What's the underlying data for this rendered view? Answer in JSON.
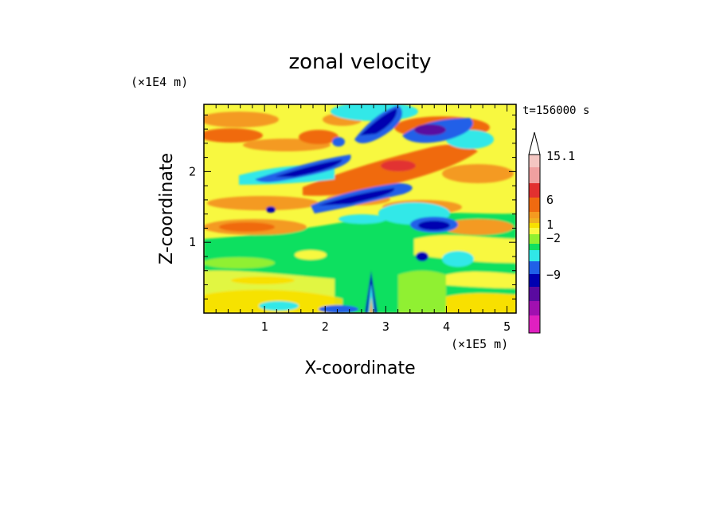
{
  "chart_data": {
    "type": "heatmap",
    "title": "zonal velocity",
    "xlabel": "X-coordinate",
    "ylabel": "Z-coordinate",
    "x_unit": "(×1E5 m)",
    "y_unit": "(×1E4 m)",
    "time_label": "t=156000 s",
    "xlim": [
      0,
      5.15
    ],
    "ylim": [
      0,
      2.95
    ],
    "x_ticks": [
      1,
      2,
      3,
      4,
      5
    ],
    "y_ticks": [
      1,
      2
    ],
    "x_tick_labels": [
      "1",
      "2",
      "3",
      "4",
      "5"
    ],
    "y_tick_labels": [
      "1",
      "2"
    ],
    "colorbar": {
      "labeled_levels": [
        "15.1",
        "6",
        "1",
        "−2",
        "−9"
      ],
      "colors_top_to_bottom": [
        "#f4c6c2",
        "#f0a0a0",
        "#e23030",
        "#f06a10",
        "#f49a20",
        "#f0b020",
        "#f8e000",
        "#f8f840",
        "#90f030",
        "#10e060",
        "#30e8e8",
        "#2060e8",
        "#0000b0",
        "#5a0aa0",
        "#a010b0",
        "#e020c0"
      ]
    },
    "bands": [
      {
        "z": 2.6,
        "x_start": 1.9,
        "x_end": 3.1,
        "value": -8
      },
      {
        "z": 2.6,
        "x_start": 3.4,
        "x_end": 4.0,
        "value": -9
      },
      {
        "z": 2.1,
        "x_start": 1.3,
        "x_end": 2.6,
        "value": -7
      },
      {
        "z": 2.1,
        "x_start": 2.9,
        "x_end": 3.9,
        "value": 7
      },
      {
        "z": 1.8,
        "x_start": 2.9,
        "x_end": 3.7,
        "value": -6
      },
      {
        "z": 1.2,
        "x_start": 3.5,
        "x_end": 4.1,
        "value": -4
      },
      {
        "z": 0.4,
        "x_start": 2.6,
        "x_end": 2.9,
        "value": -5
      }
    ],
    "grid": false,
    "legend": "colorbar at right"
  }
}
